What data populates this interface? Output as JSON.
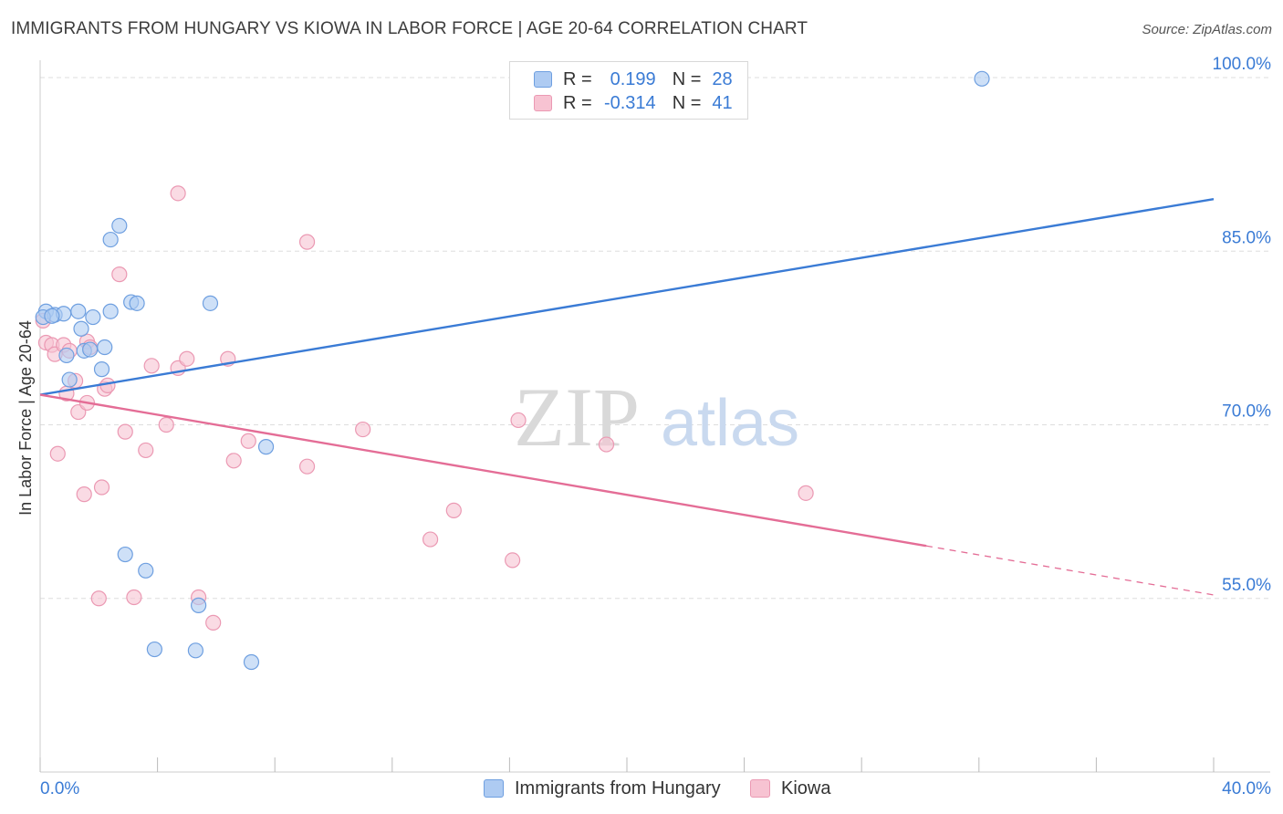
{
  "title": "IMMIGRANTS FROM HUNGARY VS KIOWA IN LABOR FORCE | AGE 20-64 CORRELATION CHART",
  "source": "Source: ZipAtlas.com",
  "watermark": {
    "zip": "ZIP",
    "atlas": "atlas"
  },
  "legend": {
    "rows": [
      {
        "r_label": "R =",
        "r_value": "0.199",
        "n_label": "N =",
        "n_value": "28"
      },
      {
        "r_label": "R =",
        "r_value": "-0.314",
        "n_label": "N =",
        "n_value": "41"
      }
    ]
  },
  "chart_data": {
    "type": "scatter",
    "title": "IMMIGRANTS FROM HUNGARY VS KIOWA IN LABOR FORCE | AGE 20-64 CORRELATION CHART",
    "xlabel": "",
    "ylabel": "In Labor Force | Age 20-64",
    "xlim": [
      0,
      40
    ],
    "ylim": [
      40,
      101.5
    ],
    "x_tick_labels": [
      "0.0%",
      "40.0%"
    ],
    "y_ticks": [
      55,
      70,
      85,
      100
    ],
    "y_tick_labels": [
      "55.0%",
      "70.0%",
      "85.0%",
      "100.0%"
    ],
    "colors": {
      "hungary_fill": "#aecbf2",
      "hungary_stroke": "#6e9fe0",
      "hungary_line": "#3a7bd5",
      "kiowa_fill": "#f7c3d2",
      "kiowa_stroke": "#eb99b3",
      "kiowa_line": "#e46d96"
    },
    "series": [
      {
        "name": "Immigrants from Hungary",
        "r": 0.199,
        "n": 28,
        "trend": {
          "x": [
            0,
            40
          ],
          "y": [
            72.6,
            89.5
          ],
          "dashed_from_x": null
        },
        "points": [
          {
            "x": 0.2,
            "y": 79.8
          },
          {
            "x": 0.5,
            "y": 79.5
          },
          {
            "x": 0.8,
            "y": 79.6
          },
          {
            "x": 0.9,
            "y": 76.0
          },
          {
            "x": 1.3,
            "y": 79.8
          },
          {
            "x": 1.4,
            "y": 78.3
          },
          {
            "x": 1.0,
            "y": 73.9
          },
          {
            "x": 1.5,
            "y": 76.4
          },
          {
            "x": 1.8,
            "y": 79.3
          },
          {
            "x": 2.1,
            "y": 74.8
          },
          {
            "x": 2.2,
            "y": 76.7
          },
          {
            "x": 1.7,
            "y": 76.5
          },
          {
            "x": 2.4,
            "y": 79.8
          },
          {
            "x": 2.4,
            "y": 86.0
          },
          {
            "x": 2.7,
            "y": 87.2
          },
          {
            "x": 3.1,
            "y": 80.6
          },
          {
            "x": 3.3,
            "y": 80.5
          },
          {
            "x": 5.8,
            "y": 80.5
          },
          {
            "x": 7.7,
            "y": 68.1
          },
          {
            "x": 2.9,
            "y": 58.8
          },
          {
            "x": 3.6,
            "y": 57.4
          },
          {
            "x": 5.4,
            "y": 54.4
          },
          {
            "x": 3.9,
            "y": 50.6
          },
          {
            "x": 5.3,
            "y": 50.5
          },
          {
            "x": 7.2,
            "y": 49.5
          },
          {
            "x": 32.1,
            "y": 99.9
          },
          {
            "x": 0.1,
            "y": 79.3
          },
          {
            "x": 0.4,
            "y": 79.4
          }
        ]
      },
      {
        "name": "Kiowa",
        "r": -0.314,
        "n": 41,
        "trend": {
          "x": [
            0,
            40
          ],
          "y": [
            72.6,
            55.3
          ],
          "dashed_from_x": 30.2
        },
        "points": [
          {
            "x": 0.1,
            "y": 79.0
          },
          {
            "x": 0.2,
            "y": 77.1
          },
          {
            "x": 0.4,
            "y": 76.9
          },
          {
            "x": 0.5,
            "y": 76.1
          },
          {
            "x": 0.8,
            "y": 76.9
          },
          {
            "x": 1.0,
            "y": 76.4
          },
          {
            "x": 1.2,
            "y": 73.8
          },
          {
            "x": 0.9,
            "y": 72.7
          },
          {
            "x": 1.3,
            "y": 71.1
          },
          {
            "x": 1.6,
            "y": 71.9
          },
          {
            "x": 1.6,
            "y": 77.2
          },
          {
            "x": 1.7,
            "y": 76.7
          },
          {
            "x": 2.2,
            "y": 73.1
          },
          {
            "x": 2.3,
            "y": 73.4
          },
          {
            "x": 2.7,
            "y": 83.0
          },
          {
            "x": 3.8,
            "y": 75.1
          },
          {
            "x": 4.7,
            "y": 74.9
          },
          {
            "x": 5.0,
            "y": 75.7
          },
          {
            "x": 6.4,
            "y": 75.7
          },
          {
            "x": 4.7,
            "y": 90.0
          },
          {
            "x": 9.1,
            "y": 85.8
          },
          {
            "x": 0.6,
            "y": 67.5
          },
          {
            "x": 2.9,
            "y": 69.4
          },
          {
            "x": 3.6,
            "y": 67.8
          },
          {
            "x": 4.3,
            "y": 70.0
          },
          {
            "x": 1.5,
            "y": 64.0
          },
          {
            "x": 2.1,
            "y": 64.6
          },
          {
            "x": 6.6,
            "y": 66.9
          },
          {
            "x": 7.1,
            "y": 68.6
          },
          {
            "x": 9.1,
            "y": 66.4
          },
          {
            "x": 11.0,
            "y": 69.6
          },
          {
            "x": 16.3,
            "y": 70.4
          },
          {
            "x": 19.3,
            "y": 68.3
          },
          {
            "x": 14.1,
            "y": 62.6
          },
          {
            "x": 13.3,
            "y": 60.1
          },
          {
            "x": 16.1,
            "y": 58.3
          },
          {
            "x": 26.1,
            "y": 64.1
          },
          {
            "x": 2.0,
            "y": 55.0
          },
          {
            "x": 3.2,
            "y": 55.1
          },
          {
            "x": 5.4,
            "y": 55.1
          },
          {
            "x": 5.9,
            "y": 52.9
          }
        ]
      }
    ]
  }
}
